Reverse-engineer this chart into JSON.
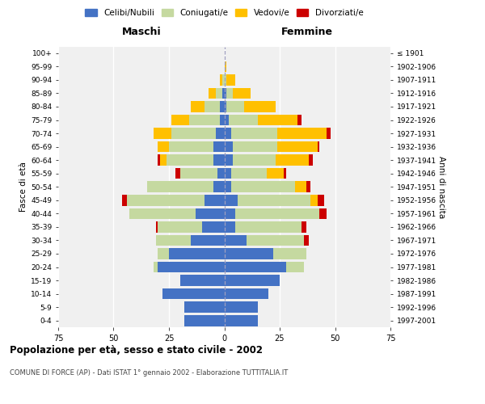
{
  "age_groups": [
    "0-4",
    "5-9",
    "10-14",
    "15-19",
    "20-24",
    "25-29",
    "30-34",
    "35-39",
    "40-44",
    "45-49",
    "50-54",
    "55-59",
    "60-64",
    "65-69",
    "70-74",
    "75-79",
    "80-84",
    "85-89",
    "90-94",
    "95-99",
    "100+"
  ],
  "birth_years": [
    "1997-2001",
    "1992-1996",
    "1987-1991",
    "1982-1986",
    "1977-1981",
    "1972-1976",
    "1967-1971",
    "1962-1966",
    "1957-1961",
    "1952-1956",
    "1947-1951",
    "1942-1946",
    "1937-1941",
    "1932-1936",
    "1927-1931",
    "1922-1926",
    "1917-1921",
    "1912-1916",
    "1907-1911",
    "1902-1906",
    "≤ 1901"
  ],
  "maschi": {
    "celibi": [
      18,
      18,
      28,
      20,
      30,
      25,
      15,
      10,
      13,
      9,
      5,
      3,
      5,
      5,
      4,
      2,
      2,
      1,
      0,
      0,
      0
    ],
    "coniugati": [
      0,
      0,
      0,
      0,
      2,
      5,
      16,
      20,
      30,
      35,
      30,
      17,
      21,
      20,
      20,
      14,
      7,
      3,
      1,
      0,
      0
    ],
    "vedovi": [
      0,
      0,
      0,
      0,
      0,
      0,
      0,
      0,
      0,
      0,
      0,
      0,
      3,
      5,
      8,
      8,
      6,
      3,
      1,
      0,
      0
    ],
    "divorziati": [
      0,
      0,
      0,
      0,
      0,
      0,
      0,
      1,
      0,
      2,
      0,
      2,
      1,
      0,
      0,
      0,
      0,
      0,
      0,
      0,
      0
    ]
  },
  "femmine": {
    "nubili": [
      15,
      15,
      20,
      25,
      28,
      22,
      10,
      5,
      5,
      6,
      3,
      3,
      4,
      4,
      3,
      2,
      1,
      1,
      0,
      0,
      0
    ],
    "coniugate": [
      0,
      0,
      0,
      0,
      8,
      15,
      26,
      30,
      38,
      33,
      29,
      16,
      19,
      20,
      21,
      13,
      8,
      3,
      1,
      0,
      0
    ],
    "vedove": [
      0,
      0,
      0,
      0,
      0,
      0,
      0,
      0,
      0,
      3,
      5,
      8,
      15,
      18,
      22,
      18,
      14,
      8,
      4,
      1,
      0
    ],
    "divorziate": [
      0,
      0,
      0,
      0,
      0,
      0,
      2,
      2,
      3,
      3,
      2,
      1,
      2,
      1,
      2,
      2,
      0,
      0,
      0,
      0,
      0
    ]
  },
  "colors": {
    "celibi": "#4472c4",
    "coniugati": "#c5d9a0",
    "vedovi": "#ffc000",
    "divorziati": "#cc0000"
  },
  "xlim": 75,
  "title": "Popolazione per età, sesso e stato civile - 2002",
  "subtitle": "COMUNE DI FORCE (AP) - Dati ISTAT 1° gennaio 2002 - Elaborazione TUTTITALIA.IT",
  "ylabel_left": "Fasce di età",
  "ylabel_right": "Anni di nascita",
  "header_left": "Maschi",
  "header_right": "Femmine",
  "bg_color": "#f0f0f0",
  "grid_color": "#ffffff"
}
